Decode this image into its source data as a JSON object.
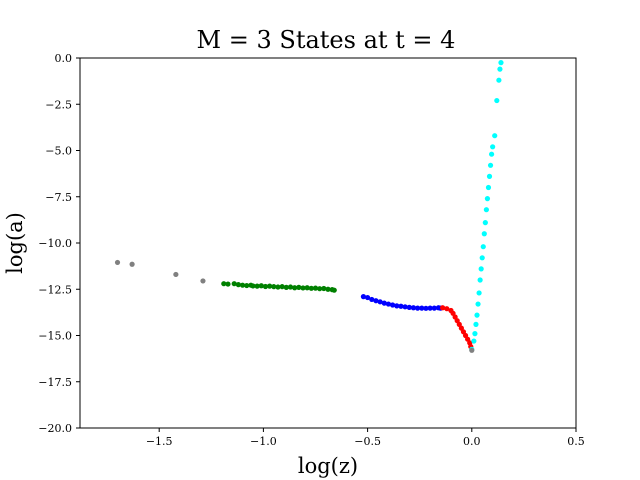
{
  "chart_data": {
    "type": "scatter",
    "title": "M = 3 States at t = 4",
    "xlabel": "log(z)",
    "ylabel": "log(a)",
    "xlim": [
      -1.88,
      0.5
    ],
    "ylim": [
      -20.0,
      0.0
    ],
    "x_ticks": [
      -1.5,
      -1.0,
      -0.5,
      0.0,
      0.5
    ],
    "x_tick_labels": [
      "−1.5",
      "−1.0",
      "−0.5",
      "0.0",
      "0.5"
    ],
    "y_ticks": [
      0.0,
      -2.5,
      -5.0,
      -7.5,
      -10.0,
      -12.5,
      -15.0,
      -17.5,
      -20.0
    ],
    "y_tick_labels": [
      "0.0",
      "−2.5",
      "−5.0",
      "−7.5",
      "−10.0",
      "−12.5",
      "−15.0",
      "−17.5",
      "−20.0"
    ],
    "grid": false,
    "series": [
      {
        "color": "#808080",
        "points": [
          [
            -1.7,
            -11.05
          ],
          [
            -1.63,
            -11.15
          ],
          [
            -1.42,
            -11.7
          ],
          [
            -1.29,
            -12.05
          ]
        ]
      },
      {
        "color": "#008000",
        "points": [
          [
            -1.19,
            -12.2
          ],
          [
            -1.17,
            -12.22
          ],
          [
            -1.14,
            -12.2
          ],
          [
            -1.12,
            -12.25
          ],
          [
            -1.1,
            -12.28
          ],
          [
            -1.08,
            -12.3
          ],
          [
            -1.06,
            -12.28
          ],
          [
            -1.05,
            -12.32
          ],
          [
            -1.03,
            -12.33
          ],
          [
            -1.01,
            -12.31
          ],
          [
            -0.99,
            -12.35
          ],
          [
            -0.97,
            -12.33
          ],
          [
            -0.95,
            -12.36
          ],
          [
            -0.93,
            -12.38
          ],
          [
            -0.91,
            -12.36
          ],
          [
            -0.89,
            -12.4
          ],
          [
            -0.87,
            -12.38
          ],
          [
            -0.85,
            -12.42
          ],
          [
            -0.83,
            -12.4
          ],
          [
            -0.81,
            -12.43
          ],
          [
            -0.79,
            -12.42
          ],
          [
            -0.77,
            -12.45
          ],
          [
            -0.75,
            -12.44
          ],
          [
            -0.73,
            -12.47
          ],
          [
            -0.71,
            -12.46
          ],
          [
            -0.69,
            -12.5
          ],
          [
            -0.67,
            -12.52
          ],
          [
            -0.66,
            -12.55
          ]
        ]
      },
      {
        "color": "#0000ff",
        "points": [
          [
            -0.52,
            -12.9
          ],
          [
            -0.5,
            -12.95
          ],
          [
            -0.48,
            -13.05
          ],
          [
            -0.46,
            -13.12
          ],
          [
            -0.44,
            -13.18
          ],
          [
            -0.42,
            -13.25
          ],
          [
            -0.4,
            -13.3
          ],
          [
            -0.38,
            -13.35
          ],
          [
            -0.36,
            -13.4
          ],
          [
            -0.34,
            -13.42
          ],
          [
            -0.32,
            -13.45
          ],
          [
            -0.3,
            -13.48
          ],
          [
            -0.28,
            -13.5
          ],
          [
            -0.26,
            -13.52
          ],
          [
            -0.24,
            -13.52
          ],
          [
            -0.22,
            -13.53
          ],
          [
            -0.2,
            -13.52
          ],
          [
            -0.18,
            -13.52
          ],
          [
            -0.16,
            -13.5
          ],
          [
            -0.15,
            -13.52
          ]
        ]
      },
      {
        "color": "#ff0000",
        "points": [
          [
            -0.14,
            -13.5
          ],
          [
            -0.12,
            -13.55
          ],
          [
            -0.1,
            -13.65
          ],
          [
            -0.09,
            -13.8
          ],
          [
            -0.08,
            -14.0
          ],
          [
            -0.07,
            -14.2
          ],
          [
            -0.06,
            -14.4
          ],
          [
            -0.05,
            -14.6
          ],
          [
            -0.04,
            -14.8
          ],
          [
            -0.03,
            -15.0
          ],
          [
            -0.02,
            -15.2
          ],
          [
            -0.01,
            -15.4
          ],
          [
            -0.005,
            -15.6
          ]
        ]
      },
      {
        "color": "#00ffff",
        "points": [
          [
            0.0,
            -15.75
          ],
          [
            0.01,
            -15.3
          ],
          [
            0.015,
            -14.9
          ],
          [
            0.02,
            -14.4
          ],
          [
            0.025,
            -13.9
          ],
          [
            0.03,
            -13.3
          ],
          [
            0.035,
            -12.7
          ],
          [
            0.04,
            -12.0
          ],
          [
            0.045,
            -11.4
          ],
          [
            0.05,
            -10.8
          ],
          [
            0.055,
            -10.2
          ],
          [
            0.06,
            -9.5
          ],
          [
            0.065,
            -8.9
          ],
          [
            0.07,
            -8.2
          ],
          [
            0.075,
            -7.6
          ],
          [
            0.08,
            -7.0
          ],
          [
            0.085,
            -6.4
          ],
          [
            0.09,
            -5.8
          ],
          [
            0.095,
            -5.2
          ],
          [
            0.1,
            -4.8
          ],
          [
            0.11,
            -4.2
          ],
          [
            0.12,
            -2.3
          ],
          [
            0.13,
            -1.2
          ],
          [
            0.135,
            -0.6
          ],
          [
            0.14,
            -0.25
          ]
        ]
      },
      {
        "color": "#808080",
        "points": [
          [
            0.0,
            -15.8
          ]
        ]
      }
    ]
  }
}
